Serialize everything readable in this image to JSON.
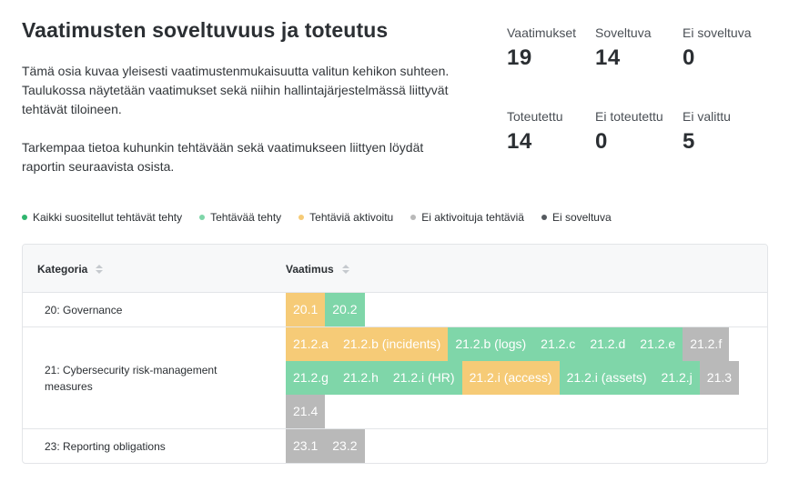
{
  "header": {
    "title": "Vaatimusten soveltuvuus ja toteutus",
    "intro_p1": "Tämä osia kuvaa yleisesti vaatimustenmukaisuutta valitun kehikon suhteen. Taulukossa näytetään vaatimukset sekä niihin hallintajärjestelmässä liittyvät tehtävät tiloineen.",
    "intro_p2": "Tarkempaa tietoa kuhunkin tehtävään sekä vaatimukseen liittyen löydät raportin seuraavista osista."
  },
  "stats": [
    {
      "label": "Vaatimukset",
      "value": "19"
    },
    {
      "label": "Soveltuva",
      "value": "14"
    },
    {
      "label": "Ei soveltuva",
      "value": "0"
    },
    {
      "label": "Toteutettu",
      "value": "14"
    },
    {
      "label": "Ei toteutettu",
      "value": "0"
    },
    {
      "label": "Ei valittu",
      "value": "5"
    }
  ],
  "legend": [
    {
      "label": "Kaikki suositellut tehtävät tehty",
      "color": "#2fb56e"
    },
    {
      "label": "Tehtävää tehty",
      "color": "#7fd6a9"
    },
    {
      "label": "Tehtäviä aktivoitu",
      "color": "#f6cb77"
    },
    {
      "label": "Ei aktivoituja tehtäviä",
      "color": "#b9b9b9"
    },
    {
      "label": "Ei soveltuva",
      "color": "#555a5f"
    }
  ],
  "table": {
    "col_category": "Kategoria",
    "col_requirement": "Vaatimus",
    "rows": [
      {
        "category": "20: Governance",
        "chips": [
          {
            "label": "20.1",
            "status": "active"
          },
          {
            "label": "20.2",
            "status": "done"
          }
        ]
      },
      {
        "category": "21: Cybersecurity risk-management measures",
        "chips": [
          {
            "label": "21.2.a",
            "status": "active"
          },
          {
            "label": "21.2.b (incidents)",
            "status": "active"
          },
          {
            "label": "21.2.b (logs)",
            "status": "done"
          },
          {
            "label": "21.2.c",
            "status": "done"
          },
          {
            "label": "21.2.d",
            "status": "done"
          },
          {
            "label": "21.2.e",
            "status": "done"
          },
          {
            "label": "21.2.f",
            "status": "none"
          },
          {
            "label": "21.2.g",
            "status": "done"
          },
          {
            "label": "21.2.h",
            "status": "done"
          },
          {
            "label": "21.2.i (HR)",
            "status": "done"
          },
          {
            "label": "21.2.i (access)",
            "status": "active"
          },
          {
            "label": "21.2.i (assets)",
            "status": "done"
          },
          {
            "label": "21.2.j",
            "status": "done"
          },
          {
            "label": "21.3",
            "status": "none"
          },
          {
            "label": "21.4",
            "status": "none"
          }
        ]
      },
      {
        "category": "23: Reporting obligations",
        "chips": [
          {
            "label": "23.1",
            "status": "none"
          },
          {
            "label": "23.2",
            "status": "none"
          }
        ]
      }
    ]
  }
}
